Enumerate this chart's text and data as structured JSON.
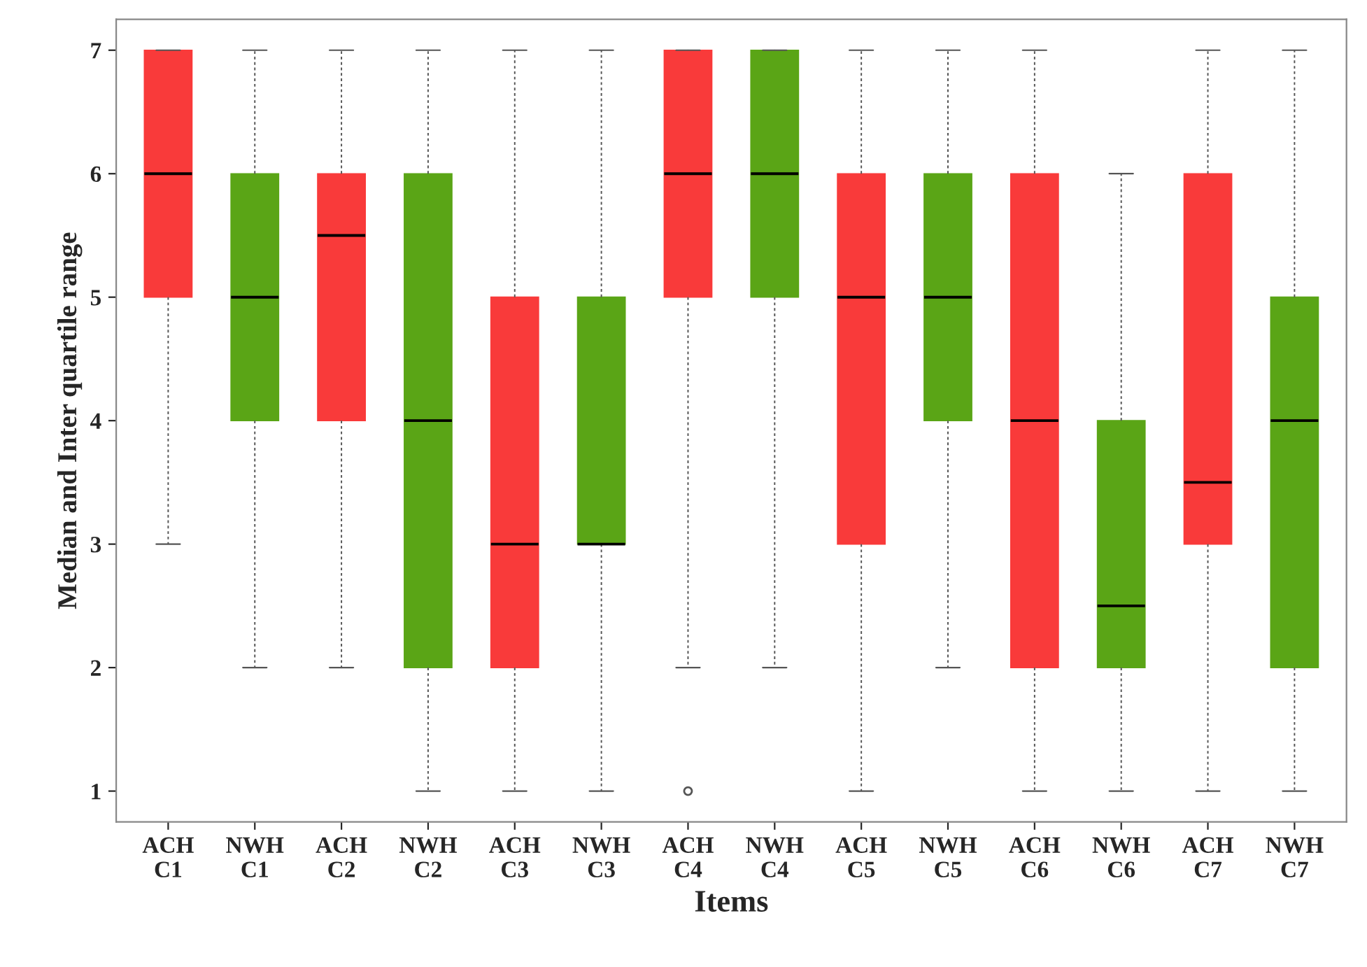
{
  "chart_data": {
    "type": "box",
    "xlabel": "Items",
    "ylabel": "Median and Inter quartile range",
    "categories": [
      "ACH\nC1",
      "NWH\nC1",
      "ACH\nC2",
      "NWH\nC2",
      "ACH\nC3",
      "NWH\nC3",
      "ACH\nC4",
      "NWH\nC4",
      "ACH\nC5",
      "NWH\nC5",
      "ACH\nC6",
      "NWH\nC6",
      "ACH\nC7",
      "NWH\nC7"
    ],
    "colors": [
      "#f93a3a",
      "#5aa516",
      "#f93a3a",
      "#5aa516",
      "#f93a3a",
      "#5aa516",
      "#f93a3a",
      "#5aa516",
      "#f93a3a",
      "#5aa516",
      "#f93a3a",
      "#5aa516",
      "#f93a3a",
      "#5aa516"
    ],
    "boxes": [
      {
        "low": 3,
        "q1": 5,
        "median": 6,
        "q3": 7,
        "high": 7
      },
      {
        "low": 2,
        "q1": 4,
        "median": 5,
        "q3": 6,
        "high": 7
      },
      {
        "low": 2,
        "q1": 4,
        "median": 5.5,
        "q3": 6,
        "high": 7
      },
      {
        "low": 1,
        "q1": 2,
        "median": 4,
        "q3": 6,
        "high": 7
      },
      {
        "low": 1,
        "q1": 2,
        "median": 3,
        "q3": 5,
        "high": 7
      },
      {
        "low": 1,
        "q1": 3,
        "median": 3,
        "q3": 5,
        "high": 7
      },
      {
        "low": 2,
        "q1": 5,
        "median": 6,
        "q3": 7,
        "high": 7,
        "outliers": [
          1
        ]
      },
      {
        "low": 2,
        "q1": 5,
        "median": 6,
        "q3": 7,
        "high": 7
      },
      {
        "low": 1,
        "q1": 3,
        "median": 5,
        "q3": 6,
        "high": 7
      },
      {
        "low": 2,
        "q1": 4,
        "median": 5,
        "q3": 6,
        "high": 7
      },
      {
        "low": 1,
        "q1": 2,
        "median": 4,
        "q3": 6,
        "high": 7
      },
      {
        "low": 1,
        "q1": 2,
        "median": 2.5,
        "q3": 4,
        "high": 6
      },
      {
        "low": 1,
        "q1": 3,
        "median": 3.5,
        "q3": 6,
        "high": 7
      },
      {
        "low": 1,
        "q1": 2,
        "median": 4,
        "q3": 5,
        "high": 7
      }
    ],
    "ylim": [
      0.75,
      7.25
    ],
    "yticks": [
      1,
      2,
      3,
      4,
      5,
      6,
      7
    ],
    "grid": false,
    "legend": false
  }
}
